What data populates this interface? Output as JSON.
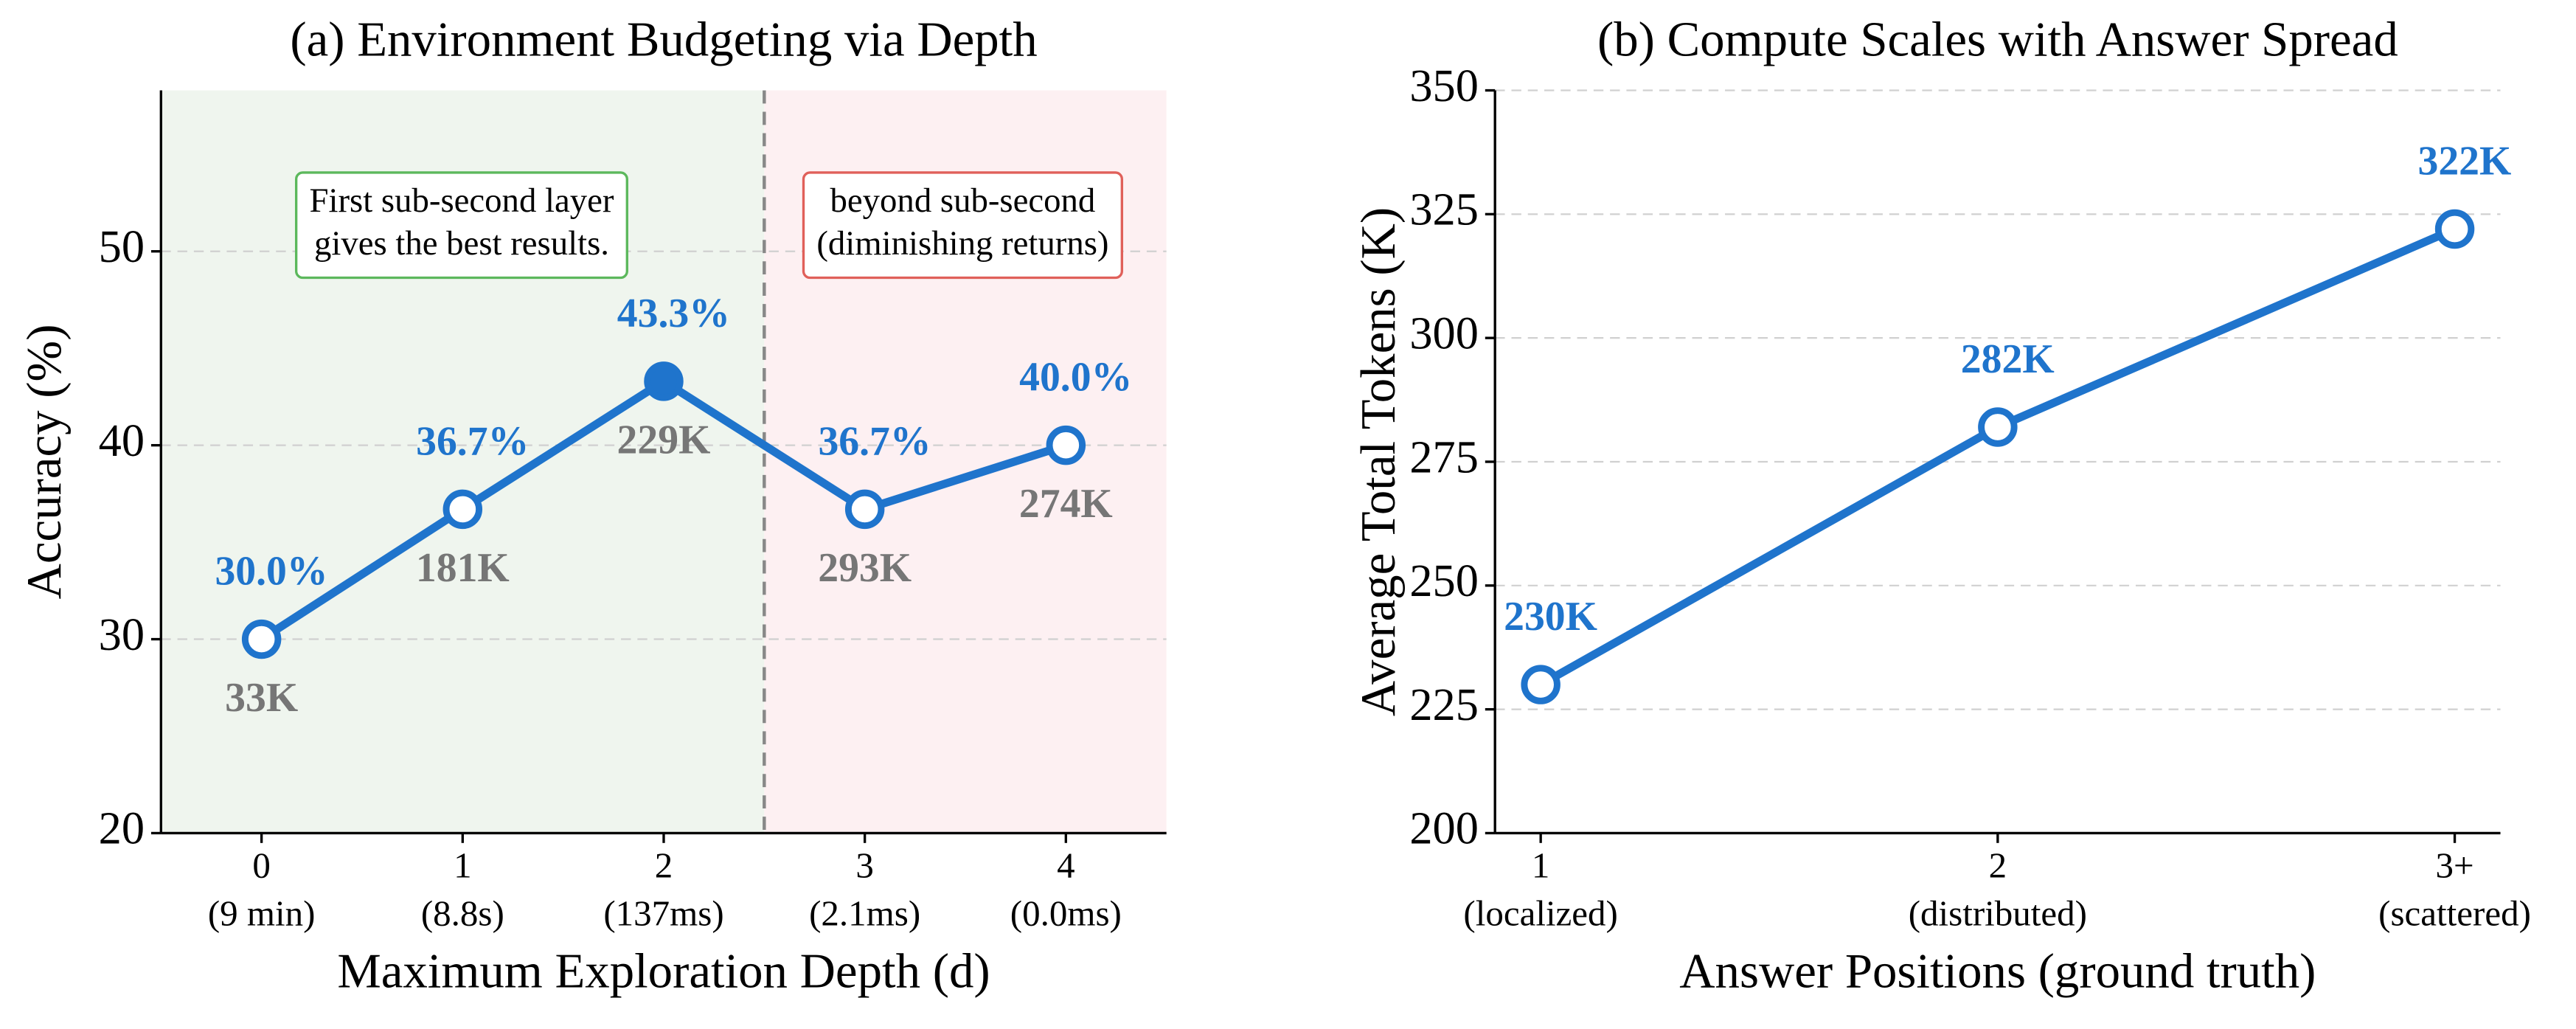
{
  "chart_data": [
    {
      "type": "line",
      "title": "(a) Environment Budgeting via Depth",
      "xlabel": "Maximum Exploration Depth (d)",
      "ylabel": "Accuracy (%)",
      "categories": [
        "0",
        "1",
        "2",
        "3",
        "4"
      ],
      "category_sublabels": [
        "(9 min)",
        "(8.8s)",
        "(137ms)",
        "(2.1ms)",
        "(0.0ms)"
      ],
      "values": [
        30.0,
        36.7,
        43.3,
        36.7,
        40.0
      ],
      "value_labels": [
        "30.0%",
        "36.7%",
        "43.3%",
        "36.7%",
        "40.0%"
      ],
      "token_labels": [
        "33K",
        "181K",
        "229K",
        "293K",
        "274K"
      ],
      "highlight": 2,
      "color": "#1f74cc",
      "ylim": [
        20,
        58.3
      ],
      "yticks": [
        20,
        30,
        40,
        50
      ],
      "grid": true,
      "regions": [
        {
          "from": -0.5,
          "to": 2.5,
          "color": "#eff5ee"
        },
        {
          "from": 2.5,
          "to": 4.5,
          "color": "#fdf0f2"
        }
      ],
      "annotations": [
        {
          "lines": [
            "First sub-second layer",
            "gives the best results."
          ],
          "border": "#5cb85c"
        },
        {
          "lines": [
            "beyond sub-second",
            "(diminishing returns)"
          ],
          "border": "#e0605a"
        }
      ]
    },
    {
      "type": "line",
      "title": "(b) Compute Scales with Answer Spread",
      "xlabel": "Answer Positions (ground truth)",
      "ylabel": "Average Total Tokens (K)",
      "categories": [
        "1",
        "2",
        "3+"
      ],
      "category_sublabels": [
        "(localized)",
        "(distributed)",
        "(scattered)"
      ],
      "values": [
        230,
        282,
        322
      ],
      "value_labels": [
        "230K",
        "282K",
        "322K"
      ],
      "color": "#1f74cc",
      "ylim": [
        200,
        350
      ],
      "yticks": [
        200,
        225,
        250,
        275,
        300,
        325,
        350
      ],
      "grid": true
    }
  ]
}
